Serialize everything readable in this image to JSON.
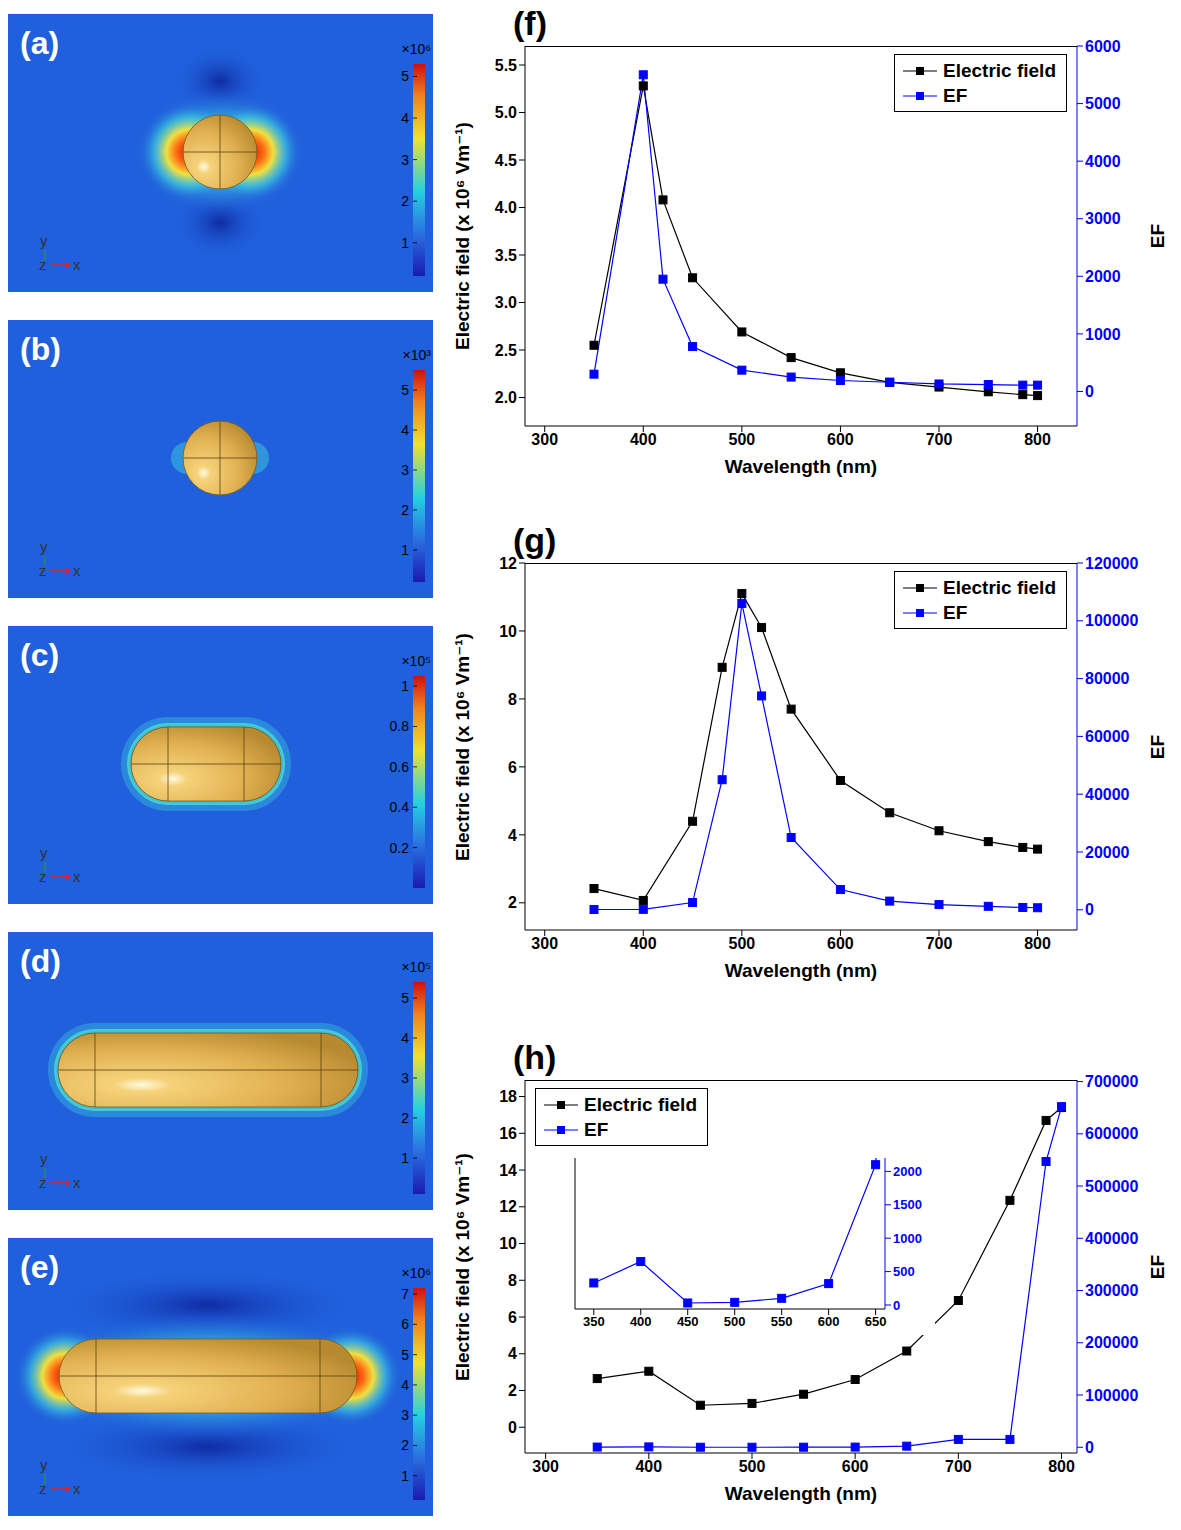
{
  "field_maps": {
    "axis_triad": [
      "y",
      "z",
      "x"
    ],
    "panels": [
      {
        "label": "(a)",
        "colorbar": {
          "multiplier": "×10⁶",
          "range": [
            0.2,
            5.3
          ],
          "ticks": [
            1,
            2,
            3,
            4,
            5
          ]
        }
      },
      {
        "label": "(b)",
        "colorbar": {
          "multiplier": "×10³",
          "range": [
            0.2,
            5.5
          ],
          "ticks": [
            1,
            2,
            3,
            4,
            5
          ]
        }
      },
      {
        "label": "(c)",
        "colorbar": {
          "multiplier": "×10⁵",
          "range": [
            0,
            1.05
          ],
          "ticks": [
            0.2,
            0.4,
            0.6,
            0.8,
            1
          ]
        }
      },
      {
        "label": "(d)",
        "colorbar": {
          "multiplier": "×10⁵",
          "range": [
            0.1,
            5.4
          ],
          "ticks": [
            1,
            2,
            3,
            4,
            5
          ]
        }
      },
      {
        "label": "(e)",
        "colorbar": {
          "multiplier": "×10⁶",
          "range": [
            0.2,
            7.2
          ],
          "ticks": [
            1,
            2,
            3,
            4,
            5,
            6,
            7
          ]
        }
      }
    ]
  },
  "chart_data": [
    {
      "label": "(f)",
      "type": "line",
      "x_label": "Wavelength (nm)",
      "y_label": "Electric field (x 10⁶ Vm⁻¹)",
      "y2_label": "EF",
      "x": [
        350,
        400,
        420,
        450,
        500,
        550,
        600,
        650,
        700,
        750,
        785,
        800
      ],
      "xlim": [
        280,
        840
      ],
      "xticks": [
        300,
        400,
        500,
        600,
        700,
        800
      ],
      "ylim": [
        1.7,
        5.7
      ],
      "yticks": [
        {
          "value": 2,
          "label": "2.0"
        },
        2.5,
        {
          "value": 3,
          "label": "3.0"
        },
        3.5,
        {
          "value": 4,
          "label": "4.0"
        },
        4.5,
        {
          "value": 5,
          "label": "5.0"
        },
        5.5
      ],
      "y2lim": [
        -600,
        6000
      ],
      "y2ticks": [
        0,
        1000,
        2000,
        3000,
        4000,
        5000,
        6000
      ],
      "legend": "upper right",
      "series": [
        {
          "name": "Electric field",
          "color": "#000000",
          "marker": "square",
          "line_style": "solid",
          "values": [
            2.55,
            5.28,
            4.08,
            3.26,
            2.69,
            2.42,
            2.26,
            2.16,
            2.11,
            2.06,
            2.03,
            2.02
          ]
        },
        {
          "name": "EF",
          "color": "#0000ff",
          "marker": "square",
          "line_style": "solid",
          "axis": "y2",
          "values": [
            300,
            5500,
            1950,
            780,
            370,
            250,
            190,
            160,
            130,
            120,
            110,
            110
          ]
        }
      ]
    },
    {
      "label": "(g)",
      "type": "line",
      "x_label": "Wavelength (nm)",
      "y_label": "Electric field (x 10⁶ Vm⁻¹)",
      "y2_label": "EF",
      "x": [
        350,
        400,
        450,
        480,
        500,
        520,
        550,
        600,
        650,
        700,
        750,
        785,
        800
      ],
      "xlim": [
        280,
        840
      ],
      "xticks": [
        300,
        400,
        500,
        600,
        700,
        800
      ],
      "ylim": [
        1.2,
        12
      ],
      "yticks": [
        2,
        4,
        6,
        8,
        10,
        12
      ],
      "y2lim": [
        -7000,
        120000
      ],
      "y2ticks": [
        0,
        20000,
        40000,
        60000,
        80000,
        100000,
        120000
      ],
      "legend": "upper right",
      "series": [
        {
          "name": "Electric field",
          "color": "#000000",
          "marker": "square",
          "line_style": "solid",
          "values": [
            2.42,
            2.07,
            4.4,
            8.93,
            11.1,
            10.1,
            7.7,
            5.6,
            4.65,
            4.12,
            3.8,
            3.63,
            3.58
          ]
        },
        {
          "name": "EF",
          "color": "#0000ff",
          "marker": "square",
          "line_style": "solid",
          "axis": "y2",
          "values": [
            100,
            150,
            2500,
            45000,
            106000,
            74000,
            25000,
            7000,
            3000,
            1800,
            1200,
            800,
            700
          ]
        }
      ]
    },
    {
      "label": "(h)",
      "type": "line",
      "x_label": "Wavelength (nm)",
      "y_label": "Electric field (x 10⁶ Vm⁻¹)",
      "y2_label": "EF",
      "x": [
        350,
        400,
        450,
        500,
        550,
        600,
        650,
        700,
        750,
        785,
        800
      ],
      "xlim": [
        280,
        815
      ],
      "xticks": [
        300,
        400,
        500,
        600,
        700,
        800
      ],
      "ylim": [
        -1.4,
        18.9
      ],
      "yticks": [
        0,
        2,
        4,
        6,
        8,
        10,
        12,
        14,
        16,
        18
      ],
      "y2lim": [
        -11000,
        703000
      ],
      "y2ticks": [
        0,
        100000,
        200000,
        300000,
        400000,
        500000,
        600000,
        700000
      ],
      "legend": "upper left",
      "series": [
        {
          "name": "Electric field",
          "color": "#000000",
          "marker": "square",
          "line_style": "solid",
          "values": [
            2.65,
            3.05,
            1.2,
            1.3,
            1.8,
            2.6,
            4.15,
            6.9,
            12.35,
            16.7,
            17.4
          ]
        },
        {
          "name": "EF",
          "color": "#0000ff",
          "marker": "square",
          "line_style": "solid",
          "axis": "y2",
          "values": [
            330,
            650,
            30,
            40,
            100,
            320,
            2100,
            15000,
            15000,
            547000,
            652000
          ]
        }
      ],
      "inset": {
        "series": "EF",
        "xlim": [
          330,
          660
        ],
        "xticks": [
          350,
          400,
          450,
          500,
          550,
          600,
          650
        ],
        "ylim": [
          -60,
          2200
        ],
        "yticks": [
          0,
          500,
          1000,
          1500,
          2000
        ]
      }
    }
  ]
}
